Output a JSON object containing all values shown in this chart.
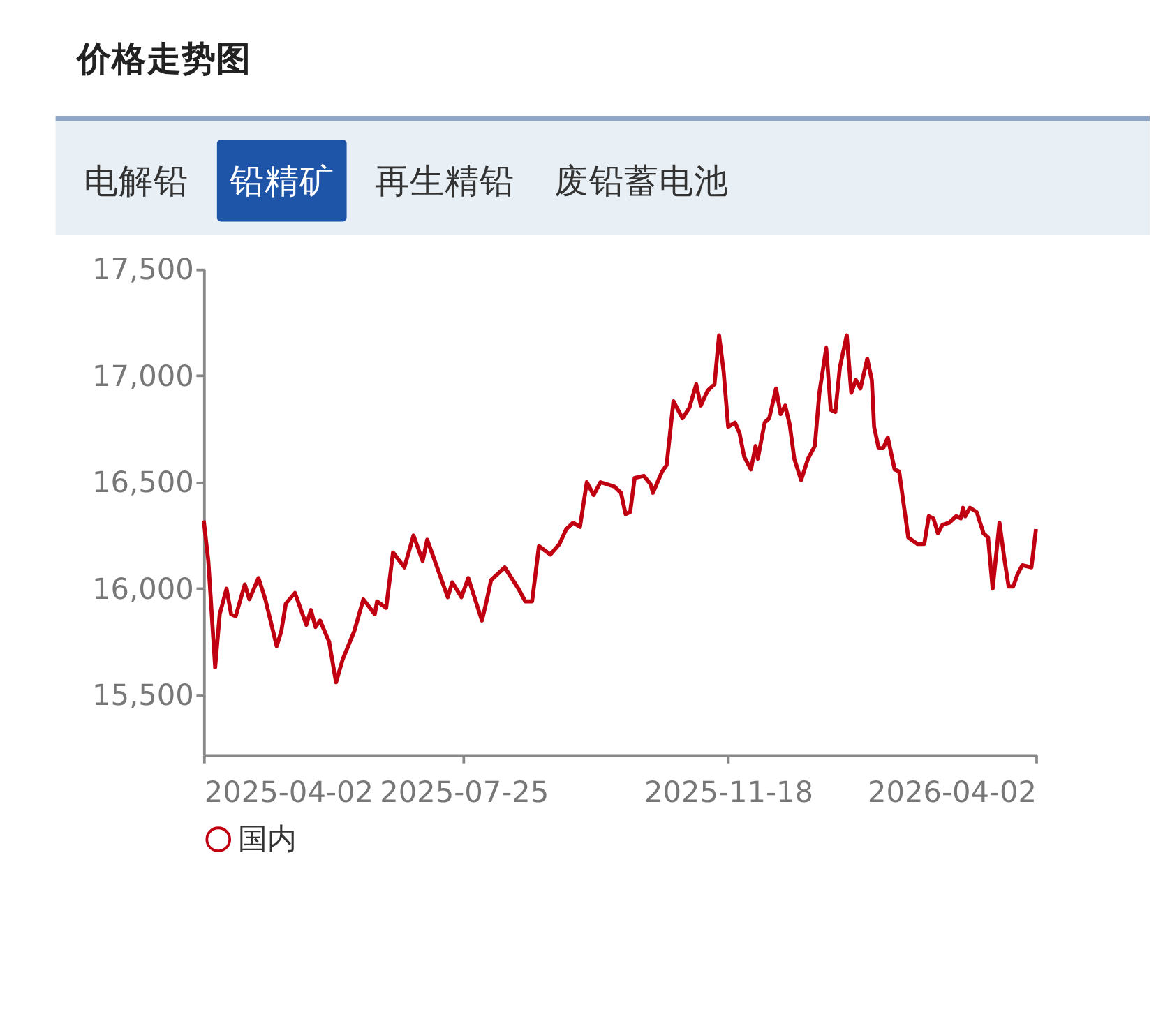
{
  "chart_data": {
    "type": "line",
    "title": "价格走势图",
    "annotations": [
      "电解铅",
      "铅精矿",
      "再生精铅",
      "废铅蓄电池"
    ],
    "x": [
      "2025-04-02",
      "2025-04-04",
      "2025-04-07",
      "2025-04-09",
      "2025-04-12",
      "2025-04-14",
      "2025-04-16",
      "2025-04-20",
      "2025-04-22",
      "2025-04-26",
      "2025-04-29",
      "2025-05-04",
      "2025-05-06",
      "2025-05-08",
      "2025-05-12",
      "2025-05-17",
      "2025-05-19",
      "2025-05-21",
      "2025-05-23",
      "2025-05-27",
      "2025-05-30",
      "2025-06-02",
      "2025-06-07",
      "2025-06-11",
      "2025-06-16",
      "2025-06-17",
      "2025-06-21",
      "2025-06-24",
      "2025-06-29",
      "2025-07-03",
      "2025-07-07",
      "2025-07-09",
      "2025-07-13",
      "2025-07-18",
      "2025-07-20",
      "2025-07-24",
      "2025-07-27",
      "2025-08-02",
      "2025-08-04",
      "2025-08-06",
      "2025-08-12",
      "2025-08-18",
      "2025-08-21",
      "2025-08-24",
      "2025-08-27",
      "2025-09-01",
      "2025-09-05",
      "2025-09-08",
      "2025-09-11",
      "2025-09-14",
      "2025-09-17",
      "2025-09-20",
      "2025-09-23",
      "2025-09-29",
      "2025-10-02",
      "2025-10-04",
      "2025-10-06",
      "2025-10-08",
      "2025-10-12",
      "2025-10-15",
      "2025-10-16",
      "2025-10-20",
      "2025-10-22",
      "2025-10-25",
      "2025-10-29",
      "2025-11-01",
      "2025-11-04",
      "2025-11-06",
      "2025-11-09",
      "2025-11-12",
      "2025-11-14",
      "2025-11-16",
      "2025-11-18",
      "2025-11-21",
      "2025-11-23",
      "2025-11-25",
      "2025-11-28",
      "2025-11-30",
      "2025-12-01",
      "2025-12-04",
      "2025-12-06",
      "2025-12-09",
      "2025-12-11",
      "2025-12-13",
      "2025-12-15",
      "2025-12-17",
      "2025-12-20",
      "2025-12-23",
      "2025-12-26",
      "2025-12-28",
      "2025-12-31",
      "2026-01-02",
      "2026-01-04",
      "2026-01-06",
      "2026-01-09",
      "2026-01-11",
      "2026-01-13",
      "2026-01-15",
      "2026-01-18",
      "2026-01-20",
      "2026-01-21",
      "2026-01-23",
      "2026-01-25",
      "2026-01-27",
      "2026-01-30",
      "2026-02-01",
      "2026-02-05",
      "2026-02-09",
      "2026-02-12",
      "2026-02-14",
      "2026-02-16",
      "2026-02-18",
      "2026-02-20",
      "2026-02-23",
      "2026-02-26",
      "2026-02-28",
      "2026-03-01",
      "2026-03-02",
      "2026-03-04",
      "2026-03-07",
      "2026-03-10",
      "2026-03-12",
      "2026-03-14",
      "2026-03-17",
      "2026-03-19",
      "2026-03-21",
      "2026-03-23",
      "2026-03-25",
      "2026-03-27",
      "2026-03-31",
      "2026-04-02"
    ],
    "series": [
      {
        "name": "国内",
        "color": "#c00010",
        "values": [
          16320,
          16130,
          15630,
          15880,
          16000,
          15880,
          15870,
          16020,
          15950,
          16050,
          15950,
          15730,
          15800,
          15930,
          15980,
          15830,
          15900,
          15820,
          15850,
          15750,
          15560,
          15670,
          15800,
          15950,
          15880,
          15940,
          15910,
          16170,
          16100,
          16250,
          16130,
          16230,
          16110,
          15960,
          16030,
          15960,
          16050,
          15850,
          15940,
          16040,
          16100,
          16000,
          15940,
          15940,
          16200,
          16160,
          16210,
          16280,
          16310,
          16290,
          16500,
          16440,
          16500,
          16480,
          16450,
          16350,
          16360,
          16520,
          16530,
          16490,
          16450,
          16550,
          16580,
          16880,
          16800,
          16850,
          16960,
          16860,
          16930,
          16960,
          17190,
          17020,
          16760,
          16780,
          16730,
          16620,
          16560,
          16670,
          16610,
          16780,
          16800,
          16940,
          16820,
          16860,
          16770,
          16610,
          16510,
          16610,
          16670,
          16920,
          17130,
          16840,
          16830,
          17040,
          17190,
          16920,
          16980,
          16940,
          17080,
          16980,
          16760,
          16660,
          16660,
          16710,
          16560,
          16550,
          16240,
          16210,
          16210,
          16340,
          16330,
          16260,
          16300,
          16310,
          16340,
          16330,
          16380,
          16340,
          16380,
          16360,
          16260,
          16240,
          16000,
          16310,
          16150,
          16010,
          16010,
          16070,
          16110,
          16100,
          16280
        ]
      }
    ],
    "xlim": [
      "2025-04-02",
      "2026-04-02"
    ],
    "xticks": [
      "2025-04-02",
      "2025-07-25",
      "2025-11-18",
      "2026-04-02"
    ],
    "ylim": [
      15220,
      17500
    ],
    "yticks": [
      {
        "value": 15500,
        "label": "15,500"
      },
      {
        "value": 16000,
        "label": "16,000"
      },
      {
        "value": 16500,
        "label": "16,500"
      },
      {
        "value": 17000,
        "label": "17,000"
      },
      {
        "value": 17500,
        "label": "17,500"
      }
    ],
    "grid": false,
    "legend": "bottom",
    "marker": "none",
    "line_style": "solid"
  }
}
